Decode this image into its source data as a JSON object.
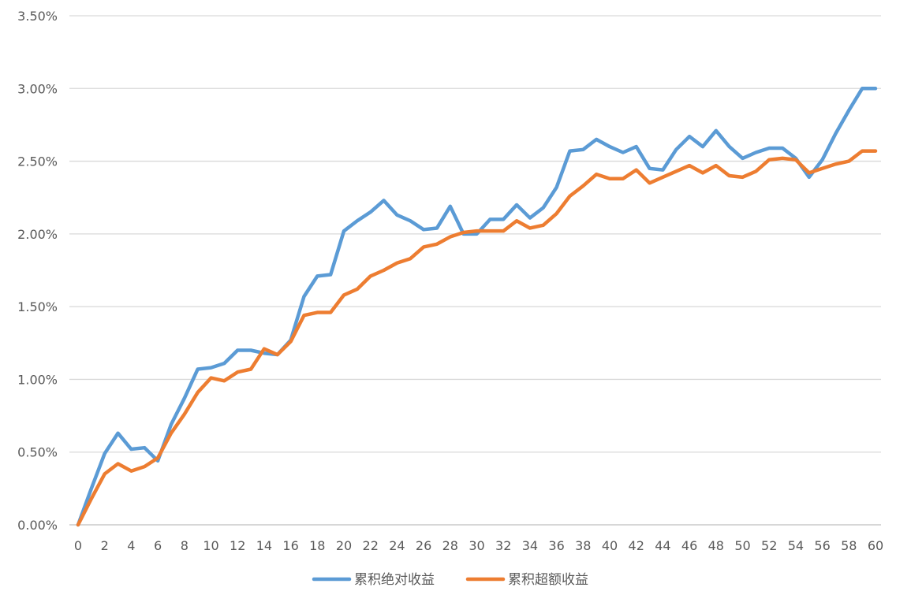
{
  "colors": {
    "series_1": "#5B9BD5",
    "series_2": "#ED7D31"
  },
  "chart_data": {
    "type": "line",
    "title": "",
    "xlabel": "",
    "ylabel": "",
    "x": [
      0,
      1,
      2,
      3,
      4,
      5,
      6,
      7,
      8,
      9,
      10,
      11,
      12,
      13,
      14,
      15,
      16,
      17,
      18,
      19,
      20,
      21,
      22,
      23,
      24,
      25,
      26,
      27,
      28,
      29,
      30,
      31,
      32,
      33,
      34,
      35,
      36,
      37,
      38,
      39,
      40,
      41,
      42,
      43,
      44,
      45,
      46,
      47,
      48,
      49,
      50,
      51,
      52,
      53,
      54,
      55,
      56,
      57,
      58,
      59,
      60
    ],
    "xlim": [
      0,
      60
    ],
    "x_tick_values": [
      0,
      2,
      4,
      6,
      8,
      10,
      12,
      14,
      16,
      18,
      20,
      22,
      24,
      26,
      28,
      30,
      32,
      34,
      36,
      38,
      40,
      42,
      44,
      46,
      48,
      50,
      52,
      54,
      56,
      58,
      60
    ],
    "x_tick_labels": [
      "0",
      "2",
      "4",
      "6",
      "8",
      "10",
      "12",
      "14",
      "16",
      "18",
      "20",
      "22",
      "24",
      "26",
      "28",
      "30",
      "32",
      "34",
      "36",
      "38",
      "40",
      "42",
      "44",
      "46",
      "48",
      "50",
      "52",
      "54",
      "56",
      "58",
      "60"
    ],
    "ylim": [
      0,
      3.5
    ],
    "y_ticks": [
      {
        "value": 0.0,
        "label": "0.00%"
      },
      {
        "value": 0.5,
        "label": "0.50%"
      },
      {
        "value": 1.0,
        "label": "1.00%"
      },
      {
        "value": 1.5,
        "label": "1.50%"
      },
      {
        "value": 2.0,
        "label": "2.00%"
      },
      {
        "value": 2.5,
        "label": "2.50%"
      },
      {
        "value": 3.0,
        "label": "3.00%"
      },
      {
        "value": 3.5,
        "label": "3.50%"
      }
    ],
    "grid": true,
    "legend_position": "bottom",
    "series": [
      {
        "name": "累积绝对收益",
        "color": "#5B9BD5",
        "values": [
          0.0,
          0.25,
          0.49,
          0.63,
          0.52,
          0.53,
          0.44,
          0.69,
          0.87,
          1.07,
          1.08,
          1.11,
          1.2,
          1.2,
          1.18,
          1.17,
          1.27,
          1.57,
          1.71,
          1.72,
          2.02,
          2.09,
          2.15,
          2.23,
          2.13,
          2.09,
          2.03,
          2.04,
          2.19,
          2.0,
          2.0,
          2.1,
          2.1,
          2.2,
          2.11,
          2.18,
          2.32,
          2.57,
          2.58,
          2.65,
          2.6,
          2.56,
          2.6,
          2.45,
          2.44,
          2.58,
          2.67,
          2.6,
          2.71,
          2.6,
          2.52,
          2.56,
          2.59,
          2.59,
          2.52,
          2.39,
          2.51,
          2.69,
          2.85,
          3.0,
          3.0
        ]
      },
      {
        "name": "累积超额收益",
        "color": "#ED7D31",
        "values": [
          0.0,
          0.18,
          0.35,
          0.42,
          0.37,
          0.4,
          0.46,
          0.63,
          0.76,
          0.91,
          1.01,
          0.99,
          1.05,
          1.07,
          1.21,
          1.17,
          1.26,
          1.44,
          1.46,
          1.46,
          1.58,
          1.62,
          1.71,
          1.75,
          1.8,
          1.83,
          1.91,
          1.93,
          1.98,
          2.01,
          2.02,
          2.02,
          2.02,
          2.09,
          2.04,
          2.06,
          2.14,
          2.26,
          2.33,
          2.41,
          2.38,
          2.38,
          2.44,
          2.35,
          2.39,
          2.43,
          2.47,
          2.42,
          2.47,
          2.4,
          2.39,
          2.43,
          2.51,
          2.52,
          2.51,
          2.42,
          2.45,
          2.48,
          2.5,
          2.57,
          2.57
        ]
      }
    ]
  }
}
